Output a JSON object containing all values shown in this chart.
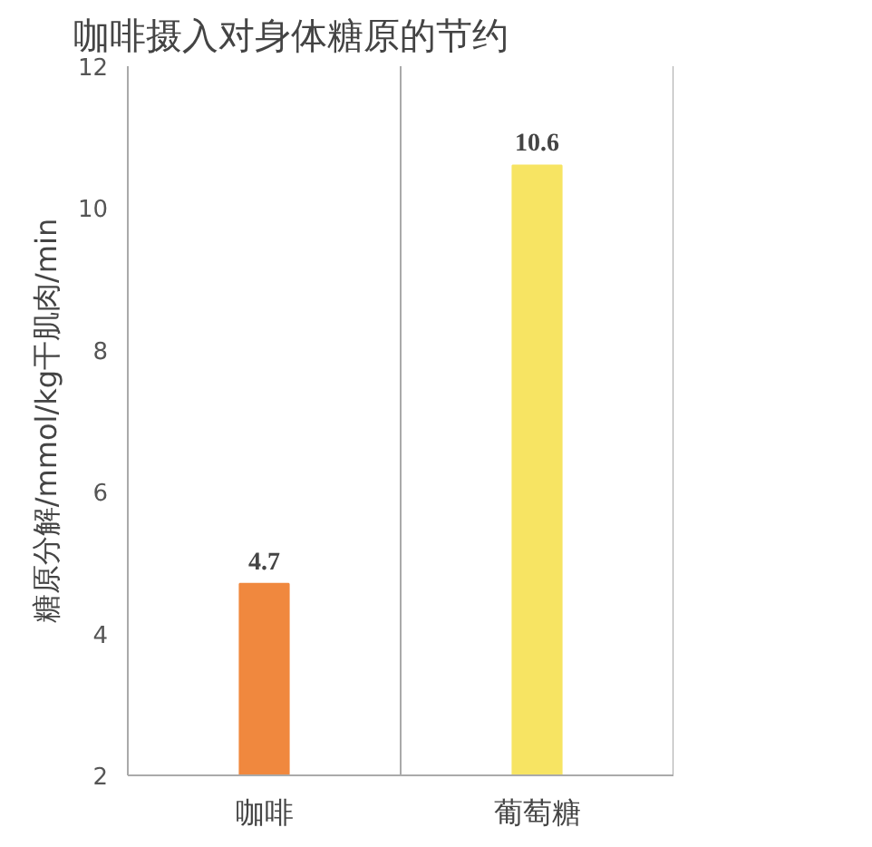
{
  "chart_data": {
    "type": "bar",
    "title": "咖啡摄入对身体糖原的节约",
    "ylabel": "糖原分解/mmol/kg干肌肉/min",
    "categories": [
      "咖啡",
      "葡萄糖"
    ],
    "values": [
      4.7,
      10.6
    ],
    "colors": [
      "#f0883e",
      "#f7e463"
    ],
    "ylim": [
      2,
      12
    ],
    "yticks": [
      2,
      4,
      6,
      8,
      10,
      12
    ],
    "grid": "x",
    "data_labels": true
  }
}
